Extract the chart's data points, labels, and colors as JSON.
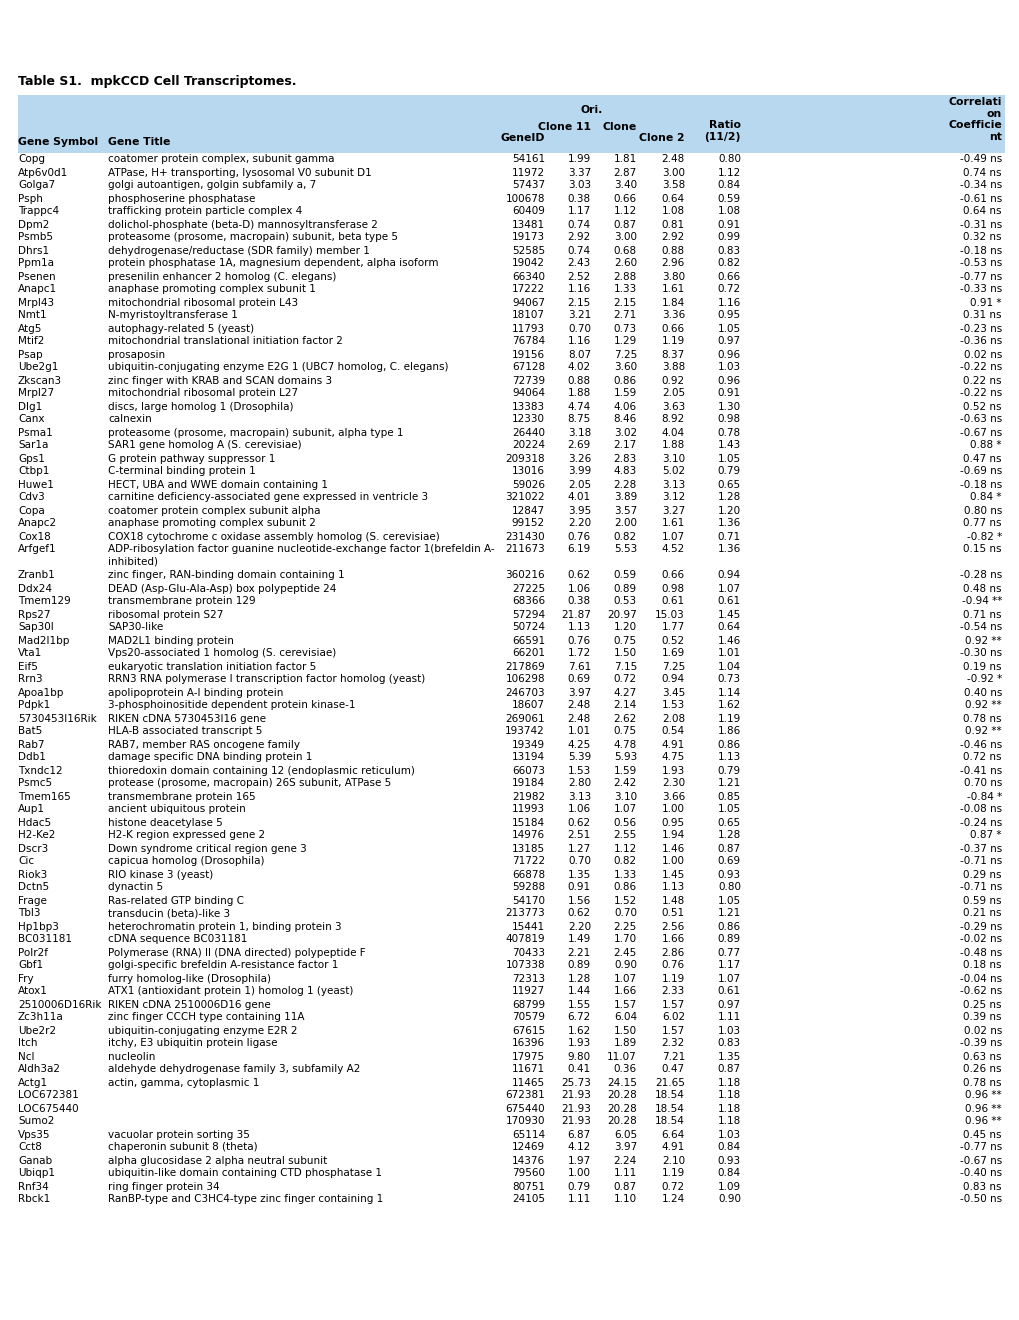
{
  "title": "Table S1.  mpkCCD Cell Transcriptomes.",
  "header_bg": "#b8d8f0",
  "rows": [
    [
      "Copg",
      "coatomer protein complex, subunit gamma",
      "54161",
      "1.99",
      "1.81",
      "2.48",
      "0.80",
      "-0.49 ns"
    ],
    [
      "Atp6v0d1",
      "ATPase, H+ transporting, lysosomal V0 subunit D1",
      "11972",
      "3.37",
      "2.87",
      "3.00",
      "1.12",
      "0.74 ns"
    ],
    [
      "Golga7",
      "golgi autoantigen, golgin subfamily a, 7",
      "57437",
      "3.03",
      "3.40",
      "3.58",
      "0.84",
      "-0.34 ns"
    ],
    [
      "Psph",
      "phosphoserine phosphatase",
      "100678",
      "0.38",
      "0.66",
      "0.64",
      "0.59",
      "-0.61 ns"
    ],
    [
      "Trappc4",
      "trafficking protein particle complex 4",
      "60409",
      "1.17",
      "1.12",
      "1.08",
      "1.08",
      "0.64 ns"
    ],
    [
      "Dpm2",
      "dolichol-phosphate (beta-D) mannosyltransferase 2",
      "13481",
      "0.74",
      "0.87",
      "0.81",
      "0.91",
      "-0.31 ns"
    ],
    [
      "Psmb5",
      "proteasome (prosome, macropain) subunit, beta type 5",
      "19173",
      "2.92",
      "3.00",
      "2.92",
      "0.99",
      "0.32 ns"
    ],
    [
      "Dhrs1",
      "dehydrogenase/reductase (SDR family) member 1",
      "52585",
      "0.74",
      "0.68",
      "0.88",
      "0.83",
      "-0.18 ns"
    ],
    [
      "Ppm1a",
      "protein phosphatase 1A, magnesium dependent, alpha isoform",
      "19042",
      "2.43",
      "2.60",
      "2.96",
      "0.82",
      "-0.53 ns"
    ],
    [
      "Psenen",
      "presenilin enhancer 2 homolog (C. elegans)",
      "66340",
      "2.52",
      "2.88",
      "3.80",
      "0.66",
      "-0.77 ns"
    ],
    [
      "Anapc1",
      "anaphase promoting complex subunit 1",
      "17222",
      "1.16",
      "1.33",
      "1.61",
      "0.72",
      "-0.33 ns"
    ],
    [
      "Mrpl43",
      "mitochondrial ribosomal protein L43",
      "94067",
      "2.15",
      "2.15",
      "1.84",
      "1.16",
      "0.91 *"
    ],
    [
      "Nmt1",
      "N-myristoyltransferase 1",
      "18107",
      "3.21",
      "2.71",
      "3.36",
      "0.95",
      "0.31 ns"
    ],
    [
      "Atg5",
      "autophagy-related 5 (yeast)",
      "11793",
      "0.70",
      "0.73",
      "0.66",
      "1.05",
      "-0.23 ns"
    ],
    [
      "Mtif2",
      "mitochondrial translational initiation factor 2",
      "76784",
      "1.16",
      "1.29",
      "1.19",
      "0.97",
      "-0.36 ns"
    ],
    [
      "Psap",
      "prosaposin",
      "19156",
      "8.07",
      "7.25",
      "8.37",
      "0.96",
      "0.02 ns"
    ],
    [
      "Ube2g1",
      "ubiquitin-conjugating enzyme E2G 1 (UBC7 homolog, C. elegans)",
      "67128",
      "4.02",
      "3.60",
      "3.88",
      "1.03",
      "-0.22 ns"
    ],
    [
      "Zkscan3",
      "zinc finger with KRAB and SCAN domains 3",
      "72739",
      "0.88",
      "0.86",
      "0.92",
      "0.96",
      "0.22 ns"
    ],
    [
      "Mrpl27",
      "mitochondrial ribosomal protein L27",
      "94064",
      "1.88",
      "1.59",
      "2.05",
      "0.91",
      "-0.22 ns"
    ],
    [
      "Dlg1",
      "discs, large homolog 1 (Drosophila)",
      "13383",
      "4.74",
      "4.06",
      "3.63",
      "1.30",
      "0.52 ns"
    ],
    [
      "Canx",
      "calnexin",
      "12330",
      "8.75",
      "8.46",
      "8.92",
      "0.98",
      "-0.63 ns"
    ],
    [
      "Psma1",
      "proteasome (prosome, macropain) subunit, alpha type 1",
      "26440",
      "3.18",
      "3.02",
      "4.04",
      "0.78",
      "-0.67 ns"
    ],
    [
      "Sar1a",
      "SAR1 gene homolog A (S. cerevisiae)",
      "20224",
      "2.69",
      "2.17",
      "1.88",
      "1.43",
      "0.88 *"
    ],
    [
      "Gps1",
      "G protein pathway suppressor 1",
      "209318",
      "3.26",
      "2.83",
      "3.10",
      "1.05",
      "0.47 ns"
    ],
    [
      "Ctbp1",
      "C-terminal binding protein 1",
      "13016",
      "3.99",
      "4.83",
      "5.02",
      "0.79",
      "-0.69 ns"
    ],
    [
      "Huwe1",
      "HECT, UBA and WWE domain containing 1",
      "59026",
      "2.05",
      "2.28",
      "3.13",
      "0.65",
      "-0.18 ns"
    ],
    [
      "Cdv3",
      "carnitine deficiency-associated gene expressed in ventricle 3",
      "321022",
      "4.01",
      "3.89",
      "3.12",
      "1.28",
      "0.84 *"
    ],
    [
      "Copa",
      "coatomer protein complex subunit alpha",
      "12847",
      "3.95",
      "3.57",
      "3.27",
      "1.20",
      "0.80 ns"
    ],
    [
      "Anapc2",
      "anaphase promoting complex subunit 2",
      "99152",
      "2.20",
      "2.00",
      "1.61",
      "1.36",
      "0.77 ns"
    ],
    [
      "Cox18",
      "COX18 cytochrome c oxidase assembly homolog (S. cerevisiae)",
      "231430",
      "0.76",
      "0.82",
      "1.07",
      "0.71",
      "-0.82 *"
    ],
    [
      "Arfgef1",
      "ADP-ribosylation factor guanine nucleotide-exchange factor 1(brefeldin A-\ninhibited)",
      "211673",
      "6.19",
      "5.53",
      "4.52",
      "1.36",
      "0.15 ns"
    ],
    [
      "Zranb1",
      "zinc finger, RAN-binding domain containing 1",
      "360216",
      "0.62",
      "0.59",
      "0.66",
      "0.94",
      "-0.28 ns"
    ],
    [
      "Ddx24",
      "DEAD (Asp-Glu-Ala-Asp) box polypeptide 24",
      "27225",
      "1.06",
      "0.89",
      "0.98",
      "1.07",
      "0.48 ns"
    ],
    [
      "Tmem129",
      "transmembrane protein 129",
      "68366",
      "0.38",
      "0.53",
      "0.61",
      "0.61",
      "-0.94 **"
    ],
    [
      "Rps27",
      "ribosomal protein S27",
      "57294",
      "21.87",
      "20.97",
      "15.03",
      "1.45",
      "0.71 ns"
    ],
    [
      "Sap30l",
      "SAP30-like",
      "50724",
      "1.13",
      "1.20",
      "1.77",
      "0.64",
      "-0.54 ns"
    ],
    [
      "Mad2l1bp",
      "MAD2L1 binding protein",
      "66591",
      "0.76",
      "0.75",
      "0.52",
      "1.46",
      "0.92 **"
    ],
    [
      "Vta1",
      "Vps20-associated 1 homolog (S. cerevisiae)",
      "66201",
      "1.72",
      "1.50",
      "1.69",
      "1.01",
      "-0.30 ns"
    ],
    [
      "Eif5",
      "eukaryotic translation initiation factor 5",
      "217869",
      "7.61",
      "7.15",
      "7.25",
      "1.04",
      "0.19 ns"
    ],
    [
      "Rrn3",
      "RRN3 RNA polymerase I transcription factor homolog (yeast)",
      "106298",
      "0.69",
      "0.72",
      "0.94",
      "0.73",
      "-0.92 *"
    ],
    [
      "Apoa1bp",
      "apolipoprotein A-I binding protein",
      "246703",
      "3.97",
      "4.27",
      "3.45",
      "1.14",
      "0.40 ns"
    ],
    [
      "Pdpk1",
      "3-phosphoinositide dependent protein kinase-1",
      "18607",
      "2.48",
      "2.14",
      "1.53",
      "1.62",
      "0.92 **"
    ],
    [
      "5730453I16Rik",
      "RIKEN cDNA 5730453I16 gene",
      "269061",
      "2.48",
      "2.62",
      "2.08",
      "1.19",
      "0.78 ns"
    ],
    [
      "Bat5",
      "HLA-B associated transcript 5",
      "193742",
      "1.01",
      "0.75",
      "0.54",
      "1.86",
      "0.92 **"
    ],
    [
      "Rab7",
      "RAB7, member RAS oncogene family",
      "19349",
      "4.25",
      "4.78",
      "4.91",
      "0.86",
      "-0.46 ns"
    ],
    [
      "Ddb1",
      "damage specific DNA binding protein 1",
      "13194",
      "5.39",
      "5.93",
      "4.75",
      "1.13",
      "0.72 ns"
    ],
    [
      "Txndc12",
      "thioredoxin domain containing 12 (endoplasmic reticulum)",
      "66073",
      "1.53",
      "1.59",
      "1.93",
      "0.79",
      "-0.41 ns"
    ],
    [
      "Psmc5",
      "protease (prosome, macropain) 26S subunit, ATPase 5",
      "19184",
      "2.80",
      "2.42",
      "2.30",
      "1.21",
      "0.70 ns"
    ],
    [
      "Tmem165",
      "transmembrane protein 165",
      "21982",
      "3.13",
      "3.10",
      "3.66",
      "0.85",
      "-0.84 *"
    ],
    [
      "Aup1",
      "ancient ubiquitous protein",
      "11993",
      "1.06",
      "1.07",
      "1.00",
      "1.05",
      "-0.08 ns"
    ],
    [
      "Hdac5",
      "histone deacetylase 5",
      "15184",
      "0.62",
      "0.56",
      "0.95",
      "0.65",
      "-0.24 ns"
    ],
    [
      "H2-Ke2",
      "H2-K region expressed gene 2",
      "14976",
      "2.51",
      "2.55",
      "1.94",
      "1.28",
      "0.87 *"
    ],
    [
      "Dscr3",
      "Down syndrome critical region gene 3",
      "13185",
      "1.27",
      "1.12",
      "1.46",
      "0.87",
      "-0.37 ns"
    ],
    [
      "Cic",
      "capicua homolog (Drosophila)",
      "71722",
      "0.70",
      "0.82",
      "1.00",
      "0.69",
      "-0.71 ns"
    ],
    [
      "Riok3",
      "RIO kinase 3 (yeast)",
      "66878",
      "1.35",
      "1.33",
      "1.45",
      "0.93",
      "0.29 ns"
    ],
    [
      "Dctn5",
      "dynactin 5",
      "59288",
      "0.91",
      "0.86",
      "1.13",
      "0.80",
      "-0.71 ns"
    ],
    [
      "Frage",
      "Ras-related GTP binding C",
      "54170",
      "1.56",
      "1.52",
      "1.48",
      "1.05",
      "0.59 ns"
    ],
    [
      "Tbl3",
      "transducin (beta)-like 3",
      "213773",
      "0.62",
      "0.70",
      "0.51",
      "1.21",
      "0.21 ns"
    ],
    [
      "Hp1bp3",
      "heterochromatin protein 1, binding protein 3",
      "15441",
      "2.20",
      "2.25",
      "2.56",
      "0.86",
      "-0.29 ns"
    ],
    [
      "BC031181",
      "cDNA sequence BC031181",
      "407819",
      "1.49",
      "1.70",
      "1.66",
      "0.89",
      "-0.02 ns"
    ],
    [
      "Polr2f",
      "Polymerase (RNA) II (DNA directed) polypeptide F",
      "70433",
      "2.21",
      "2.45",
      "2.86",
      "0.77",
      "-0.48 ns"
    ],
    [
      "Gbf1",
      "golgi-specific brefeldin A-resistance factor 1",
      "107338",
      "0.89",
      "0.90",
      "0.76",
      "1.17",
      "0.18 ns"
    ],
    [
      "Fry",
      "furry homolog-like (Drosophila)",
      "72313",
      "1.28",
      "1.07",
      "1.19",
      "1.07",
      "-0.04 ns"
    ],
    [
      "Atox1",
      "ATX1 (antioxidant protein 1) homolog 1 (yeast)",
      "11927",
      "1.44",
      "1.66",
      "2.33",
      "0.61",
      "-0.62 ns"
    ],
    [
      "2510006D16Rik",
      "RIKEN cDNA 2510006D16 gene",
      "68799",
      "1.55",
      "1.57",
      "1.57",
      "0.97",
      "0.25 ns"
    ],
    [
      "Zc3h11a",
      "zinc finger CCCH type containing 11A",
      "70579",
      "6.72",
      "6.04",
      "6.02",
      "1.11",
      "0.39 ns"
    ],
    [
      "Ube2r2",
      "ubiquitin-conjugating enzyme E2R 2",
      "67615",
      "1.62",
      "1.50",
      "1.57",
      "1.03",
      "0.02 ns"
    ],
    [
      "Itch",
      "itchy, E3 ubiquitin protein ligase",
      "16396",
      "1.93",
      "1.89",
      "2.32",
      "0.83",
      "-0.39 ns"
    ],
    [
      "Ncl",
      "nucleolin",
      "17975",
      "9.80",
      "11.07",
      "7.21",
      "1.35",
      "0.63 ns"
    ],
    [
      "Aldh3a2",
      "aldehyde dehydrogenase family 3, subfamily A2",
      "11671",
      "0.41",
      "0.36",
      "0.47",
      "0.87",
      "0.26 ns"
    ],
    [
      "Actg1",
      "actin, gamma, cytoplasmic 1",
      "11465",
      "25.73",
      "24.15",
      "21.65",
      "1.18",
      "0.78 ns"
    ],
    [
      "LOC672381",
      "",
      "672381",
      "21.93",
      "20.28",
      "18.54",
      "1.18",
      "0.96 **"
    ],
    [
      "LOC675440",
      "",
      "675440",
      "21.93",
      "20.28",
      "18.54",
      "1.18",
      "0.96 **"
    ],
    [
      "Sumo2",
      "",
      "170930",
      "21.93",
      "20.28",
      "18.54",
      "1.18",
      "0.96 **"
    ],
    [
      "Vps35",
      "vacuolar protein sorting 35",
      "65114",
      "6.87",
      "6.05",
      "6.64",
      "1.03",
      "0.45 ns"
    ],
    [
      "Cct8",
      "chaperonin subunit 8 (theta)",
      "12469",
      "4.12",
      "3.97",
      "4.91",
      "0.84",
      "-0.77 ns"
    ],
    [
      "Ganab",
      "alpha glucosidase 2 alpha neutral subunit",
      "14376",
      "1.97",
      "2.24",
      "2.10",
      "0.93",
      "-0.67 ns"
    ],
    [
      "Ubiqp1",
      "ubiquitin-like domain containing CTD phosphatase 1",
      "79560",
      "1.00",
      "1.11",
      "1.19",
      "0.84",
      "-0.40 ns"
    ],
    [
      "Rnf34",
      "ring finger protein 34",
      "80751",
      "0.79",
      "0.87",
      "0.72",
      "1.09",
      "0.83 ns"
    ],
    [
      "Rbck1",
      "RanBP-type and C3HC4-type zinc finger containing 1",
      "24105",
      "1.11",
      "1.10",
      "1.24",
      "0.90",
      "-0.50 ns"
    ]
  ]
}
